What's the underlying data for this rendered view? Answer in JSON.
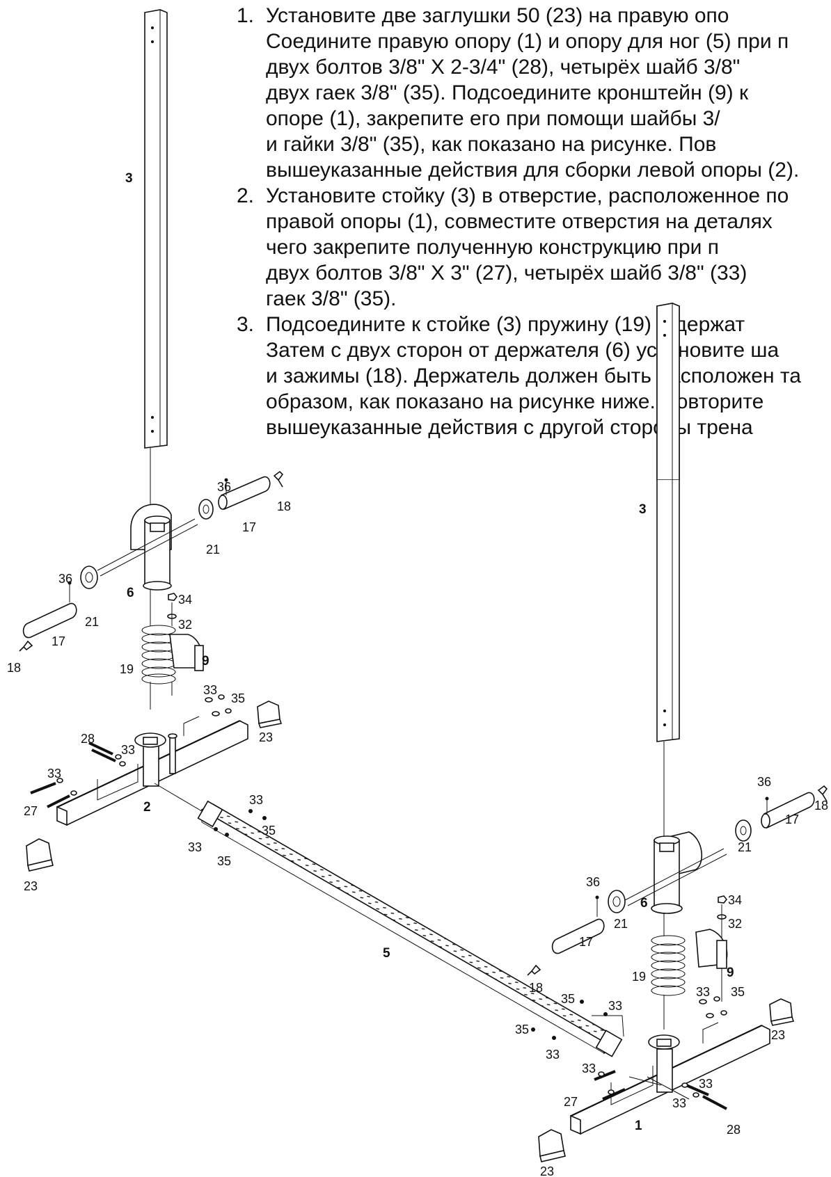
{
  "instructions": [
    {
      "number": "1.",
      "lines": [
        "Установите две заглушки 50 (23) на правую опо",
        "Соедините правую опору (1) и опору для ног (5) при п",
        "двух болтов 3/8\" X 2-3/4\" (28), четырёх шайб 3/8\"",
        "двух гаек 3/8\" (35). Подсоедините кронштейн (9) к",
        "опоре (1), закрепите его при помощи шайбы 3/",
        "и гайки 3/8\" (35), как показано на рисунке. Пов",
        "вышеуказанные действия для сборки левой опоры (2)."
      ]
    },
    {
      "number": "2.",
      "lines": [
        "Установите стойку (3) в отверстие, расположенное по",
        "правой опоры (1), совместите отверстия на деталях",
        "чего закрепите полученную конструкцию при п",
        "двух болтов 3/8\" X 3\" (27), четырёх шайб 3/8\" (33)",
        "гаек 3/8\" (35)."
      ]
    },
    {
      "number": "3.",
      "lines": [
        "Подсоедините к стойке (3) пружину (19) и держат",
        "Затем с двух сторон от держателя (6) установите ша",
        "и зажимы (18). Держатель должен быть расположен та",
        "образом, как показано на рисунке ниже. Повторите",
        "вышеуказанные действия с другой стороны трена"
      ]
    }
  ],
  "labels": {
    "left": {
      "post": "3",
      "holder": "6",
      "spring": "19",
      "bracket": "9",
      "base": "2",
      "pin36a": "36",
      "clip18a": "18",
      "sleeve17a": "17",
      "roller21a": "21",
      "pin36b": "36",
      "roller21b": "21",
      "sleeve17b": "17",
      "clip18b": "18",
      "nut34": "34",
      "washer32": "32",
      "w33a": "33",
      "n35a": "35",
      "cap23a": "23",
      "bolt28": "28",
      "w33b": "33",
      "w33c": "33",
      "bolt27": "27",
      "cap23b": "23"
    },
    "foot": {
      "tube": "5",
      "w33a": "33",
      "n35a": "35",
      "w33b": "33",
      "n35b": "35",
      "n35c": "35",
      "w33c": "33",
      "n35d": "35",
      "w33d": "33"
    },
    "right": {
      "post": "3",
      "holder": "6",
      "spring": "19",
      "bracket": "9",
      "base": "1",
      "pin36a": "36",
      "clip18a": "18",
      "sleeve17a": "17",
      "roller21a": "21",
      "pin36b": "36",
      "roller21b": "21",
      "sleeve17b": "17",
      "clip18b": "18",
      "nut34": "34",
      "washer32": "32",
      "w33a": "33",
      "n35a": "35",
      "cap23a": "23",
      "w33b": "33",
      "bolt27": "27",
      "w33c": "33",
      "w33d": "33",
      "bolt28": "28",
      "cap23b": "23"
    }
  }
}
